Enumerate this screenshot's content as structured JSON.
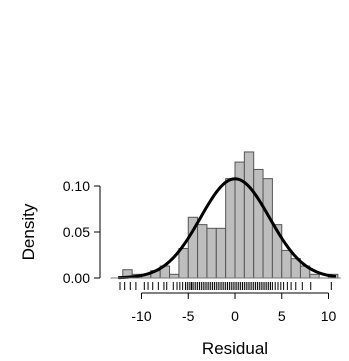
{
  "chart_data": {
    "type": "bar",
    "title": "",
    "xlabel": "Residual",
    "ylabel": "Density",
    "xlim": [
      -13,
      11.5
    ],
    "ylim": [
      0,
      0.135
    ],
    "xticks": [
      -10,
      -5,
      0,
      5,
      10
    ],
    "xtick_labels": [
      "-10",
      "-5",
      "0",
      "5",
      "10"
    ],
    "yticks": [
      0,
      0.05,
      0.1
    ],
    "ytick_labels": [
      "0.00",
      "0.05",
      "0.10"
    ],
    "bin_width": 1,
    "bins": [
      {
        "x0": -13,
        "x1": -12,
        "density": 0.0
      },
      {
        "x0": -12,
        "x1": -11,
        "density": 0.009
      },
      {
        "x0": -11,
        "x1": -10,
        "density": 0.004
      },
      {
        "x0": -10,
        "x1": -9,
        "density": 0.004
      },
      {
        "x0": -9,
        "x1": -8,
        "density": 0.008
      },
      {
        "x0": -8,
        "x1": -7,
        "density": 0.013
      },
      {
        "x0": -7,
        "x1": -6,
        "density": 0.004
      },
      {
        "x0": -6,
        "x1": -5,
        "density": 0.032
      },
      {
        "x0": -5,
        "x1": -4,
        "density": 0.066
      },
      {
        "x0": -4,
        "x1": -3,
        "density": 0.058
      },
      {
        "x0": -3,
        "x1": -2,
        "density": 0.054
      },
      {
        "x0": -2,
        "x1": -1,
        "density": 0.054
      },
      {
        "x0": -1,
        "x1": 0,
        "density": 0.108
      },
      {
        "x0": 0,
        "x1": 1,
        "density": 0.126
      },
      {
        "x0": 1,
        "x1": 2,
        "density": 0.137
      },
      {
        "x0": 2,
        "x1": 3,
        "density": 0.118
      },
      {
        "x0": 3,
        "x1": 4,
        "density": 0.108
      },
      {
        "x0": 4,
        "x1": 5,
        "density": 0.058
      },
      {
        "x0": 5,
        "x1": 6,
        "density": 0.03
      },
      {
        "x0": 6,
        "x1": 7,
        "density": 0.021
      },
      {
        "x0": 7,
        "x1": 8,
        "density": 0.013
      },
      {
        "x0": 8,
        "x1": 9,
        "density": 0.004
      },
      {
        "x0": 9,
        "x1": 10,
        "density": 0.0
      },
      {
        "x0": 10,
        "x1": 11,
        "density": 0.004
      }
    ],
    "density_curve": {
      "distribution": "normal",
      "mean": 0,
      "sd": 3.7
    },
    "rug_values": [
      -12.3,
      -11.8,
      -11.2,
      -10.6,
      -9.7,
      -9.3,
      -8.8,
      -8.2,
      -7.6,
      -7.3,
      -6.6,
      -6.2,
      -5.9,
      -5.6,
      -5.3,
      -5.1,
      -4.9,
      -4.7,
      -4.6,
      -4.4,
      -4.2,
      -4.0,
      -3.8,
      -3.6,
      -3.4,
      -3.2,
      -3.0,
      -2.8,
      -2.6,
      -2.4,
      -2.2,
      -2.0,
      -1.8,
      -1.6,
      -1.4,
      -1.2,
      -1.0,
      -0.8,
      -0.6,
      -0.4,
      -0.2,
      0.0,
      0.2,
      0.4,
      0.6,
      0.8,
      1.0,
      1.2,
      1.4,
      1.6,
      1.8,
      2.0,
      2.2,
      2.4,
      2.6,
      2.8,
      3.0,
      3.2,
      3.4,
      3.6,
      3.8,
      4.0,
      4.3,
      4.6,
      4.9,
      5.2,
      5.6,
      6.0,
      6.5,
      7.2,
      8.1,
      10.3
    ],
    "colors": {
      "bar_fill": "#bebebe",
      "bar_stroke": "#555555",
      "curve": "#000000",
      "rug": "#000000",
      "axis": "#000000"
    }
  }
}
